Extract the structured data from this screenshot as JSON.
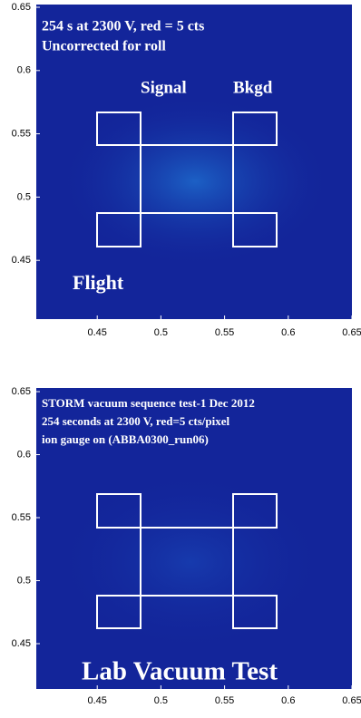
{
  "chart_data": [
    {
      "type": "heatmap",
      "annotations": [
        "254 s at 2300 V, red = 5 cts",
        "Uncorrected for roll",
        "Signal",
        "Bkgd",
        "Flight"
      ],
      "xlim": [
        0.4,
        0.65
      ],
      "ylim": [
        0.4,
        0.65
      ],
      "xticks": [
        0.45,
        0.5,
        0.55,
        0.6,
        0.65
      ],
      "yticks": [
        0.45,
        0.5,
        0.55,
        0.6,
        0.65
      ]
    },
    {
      "type": "heatmap",
      "annotations": [
        "STORM vacuum sequence test-1 Dec 2012",
        "254 seconds at 2300 V, red=5 cts/pixel",
        "ion gauge on (ABBA0300_run06)",
        "Lab Vacuum Test"
      ],
      "xlim": [
        0.4,
        0.65
      ],
      "ylim": [
        0.4,
        0.65
      ],
      "xticks": [
        0.45,
        0.5,
        0.55,
        0.6,
        0.65
      ],
      "yticks": [
        0.45,
        0.5,
        0.55,
        0.6,
        0.65
      ]
    }
  ]
}
